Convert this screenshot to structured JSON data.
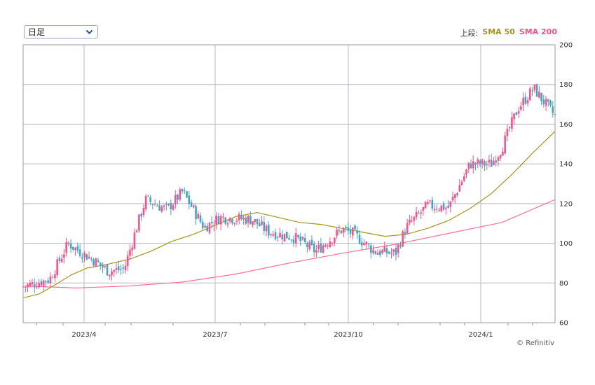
{
  "controls": {
    "period_value": "日足",
    "legend_prefix": "上段:",
    "legend_sma50": "SMA 50",
    "legend_sma200": "SMA 200"
  },
  "credit": "© Refinitiv",
  "colors": {
    "up": "#ff4f87",
    "down": "#3aa6c9",
    "sma50": "#a89418",
    "sma200": "#ff6f98",
    "grid": "#b9b9c8",
    "frame": "#9a9aaa"
  },
  "chart_data": {
    "type": "candlestick",
    "x_tick_labels": [
      "2023/4",
      "2023/7",
      "2023/10",
      "2024/1"
    ],
    "y_ticks": [
      60,
      80,
      100,
      120,
      140,
      160,
      180,
      200
    ],
    "ylim": [
      60,
      200
    ],
    "grid": true,
    "legend_position": "top-right",
    "series": [
      {
        "name": "SMA 50",
        "x": [
          0.0,
          0.03,
          0.06,
          0.09,
          0.12,
          0.16,
          0.2,
          0.24,
          0.28,
          0.32,
          0.36,
          0.4,
          0.44,
          0.48,
          0.52,
          0.56,
          0.6,
          0.64,
          0.68,
          0.72,
          0.76,
          0.8,
          0.84,
          0.88,
          0.92,
          0.96,
          1.0
        ],
        "values": [
          72.5,
          74.5,
          79,
          84,
          87.5,
          89.5,
          92,
          96,
          101,
          104.5,
          109,
          113.5,
          115.5,
          113,
          110.5,
          109.5,
          107.5,
          105.5,
          103.5,
          104.5,
          107.5,
          111.5,
          117.5,
          125,
          135,
          146,
          156.5
        ]
      },
      {
        "name": "SMA 200",
        "x": [
          0.0,
          0.1,
          0.2,
          0.3,
          0.4,
          0.5,
          0.6,
          0.7,
          0.8,
          0.9,
          1.0
        ],
        "values": [
          78.5,
          77.5,
          78.5,
          80.5,
          84.5,
          90,
          95,
          99.5,
          105,
          110.5,
          122
        ]
      },
      {
        "name": "price",
        "x": [
          0.0,
          0.05,
          0.085,
          0.1,
          0.13,
          0.16,
          0.19,
          0.21,
          0.23,
          0.27,
          0.3,
          0.34,
          0.37,
          0.43,
          0.46,
          0.49,
          0.51,
          0.55,
          0.6,
          0.62,
          0.66,
          0.7,
          0.72,
          0.76,
          0.8,
          0.84,
          0.88,
          0.9,
          0.93,
          0.96,
          1.0
        ],
        "values": [
          78,
          82,
          100,
          97,
          92,
          86,
          87,
          105,
          122,
          117,
          126,
          108,
          113,
          112,
          106,
          104,
          103,
          96,
          107,
          105,
          96,
          95,
          108,
          119,
          118,
          140,
          140,
          148,
          168,
          178,
          164
        ]
      }
    ]
  }
}
